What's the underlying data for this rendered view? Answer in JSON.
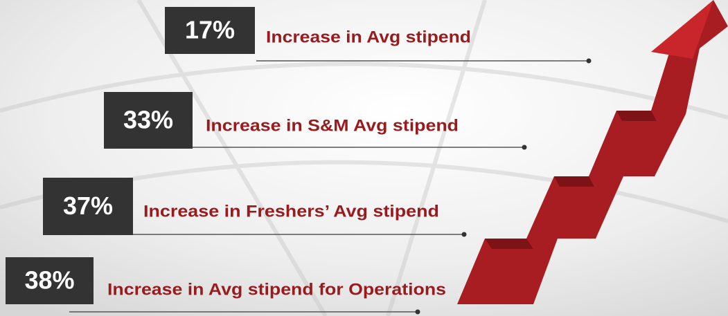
{
  "items": [
    {
      "percent": "17%",
      "label": "Increase in Avg stipend"
    },
    {
      "percent": "33%",
      "label": "Increase in S&M Avg stipend"
    },
    {
      "percent": "37%",
      "label": "Increase in Freshers’ Avg stipend"
    },
    {
      "percent": "38%",
      "label": "Increase in Avg stipend for Operations"
    }
  ]
}
